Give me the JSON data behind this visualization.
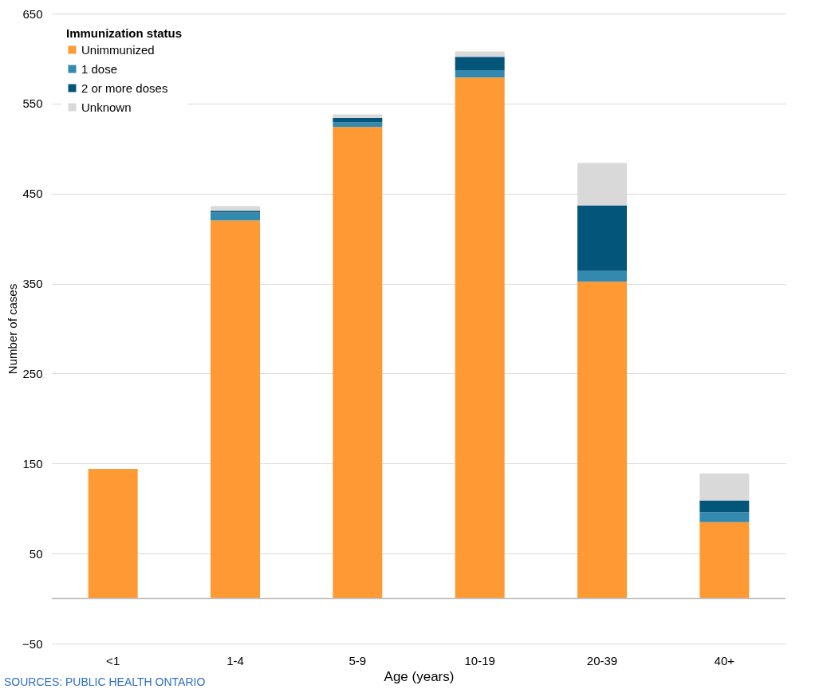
{
  "chart_data": {
    "type": "bar",
    "stacked": true,
    "xlabel": "Age (years)",
    "ylabel": "Number of cases",
    "legend_title": "Immunization status",
    "categories": [
      "<1",
      "1-4",
      "5-9",
      "10-19",
      "20-39",
      "40+"
    ],
    "series": [
      {
        "name": "Unimmunized",
        "color": "#ff9933",
        "values": [
          144,
          420,
          524,
          579,
          352,
          85
        ]
      },
      {
        "name": "1 dose",
        "color": "#348aae",
        "values": [
          0,
          9,
          5,
          8,
          12,
          11
        ]
      },
      {
        "name": "2 or more doses",
        "color": "#04557a",
        "values": [
          0,
          2,
          5,
          15,
          73,
          13
        ]
      },
      {
        "name": "Unknown",
        "color": "#d9d9d9",
        "values": [
          0,
          5,
          4,
          6,
          47,
          30
        ]
      }
    ],
    "ylim": [
      -50,
      650
    ],
    "yticks": [
      -50,
      50,
      150,
      250,
      350,
      450,
      550,
      650
    ],
    "grid": "y",
    "legend": "top left",
    "annotations": [
      "SOURCES: PUBLIC HEALTH ONTARIO"
    ]
  }
}
